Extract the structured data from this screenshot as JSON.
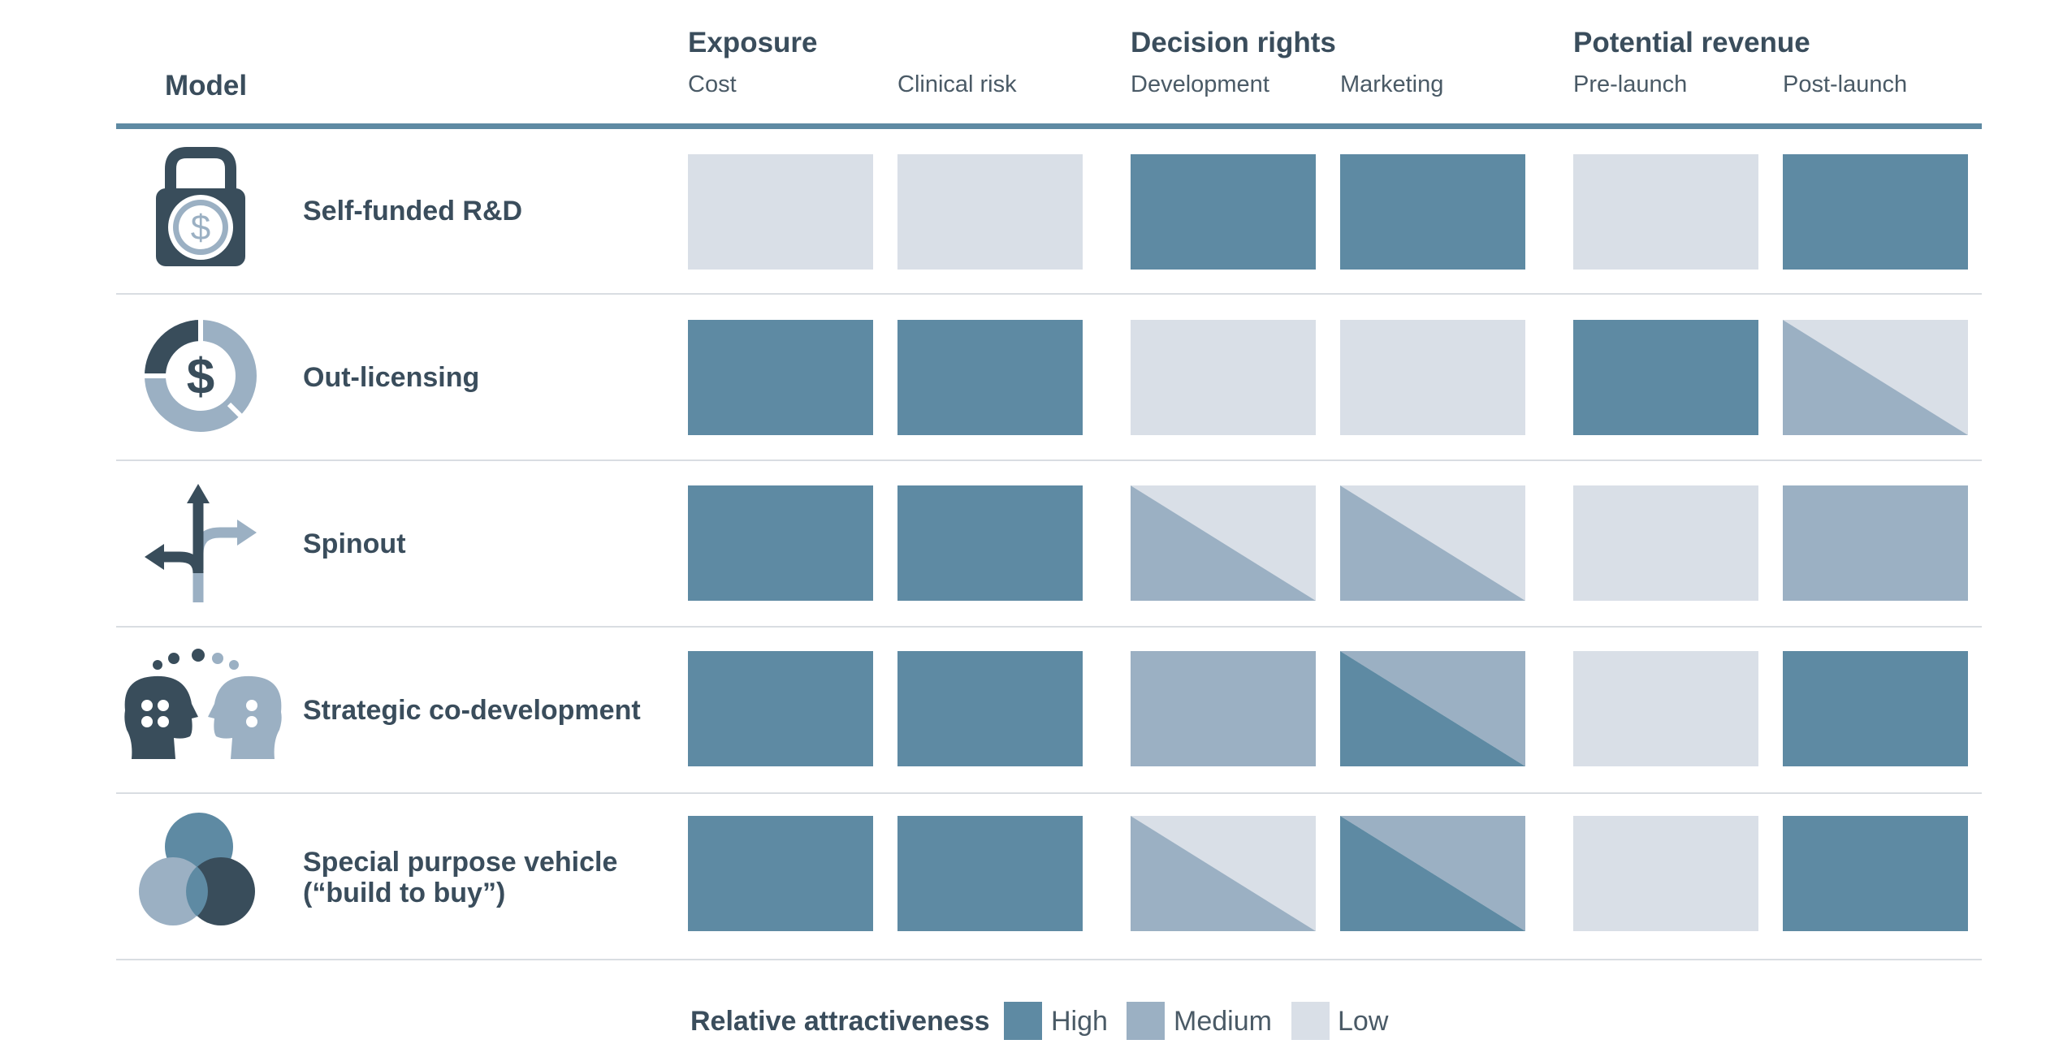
{
  "header": {
    "model_label": "Model",
    "groups": [
      {
        "label": "Exposure",
        "columns": [
          "Cost",
          "Clinical risk"
        ]
      },
      {
        "label": "Decision rights",
        "columns": [
          "Development",
          "Marketing"
        ]
      },
      {
        "label": "Potential revenue",
        "columns": [
          "Pre-launch",
          "Post-launch"
        ]
      }
    ]
  },
  "colors": {
    "high": "#5e8aa3",
    "medium": "#9bb0c3",
    "low": "#d9dfe7",
    "text": "#3a4d5c",
    "dark_icon": "#394d5b"
  },
  "rows": [
    {
      "label": "Self-funded R&D",
      "icon": "lock-dollar-icon",
      "cells": [
        "low",
        "low",
        "high",
        "high",
        "low",
        "high"
      ]
    },
    {
      "label": "Out-licensing",
      "icon": "dollar-donut-icon",
      "cells": [
        "high",
        "high",
        "low",
        "low",
        "high",
        "medium/low"
      ]
    },
    {
      "label": "Spinout",
      "icon": "split-arrows-icon",
      "cells": [
        "high",
        "high",
        "medium/low",
        "medium/low",
        "low",
        "medium"
      ]
    },
    {
      "label": "Strategic co-development",
      "icon": "two-heads-icon",
      "cells": [
        "high",
        "high",
        "medium",
        "high/medium",
        "low",
        "high"
      ]
    },
    {
      "label": "Special purpose vehicle\n(“build to buy”)",
      "icon": "venn-circles-icon",
      "cells": [
        "high",
        "high",
        "medium/low",
        "high/medium",
        "low",
        "high"
      ]
    }
  ],
  "legend": {
    "title": "Relative attractiveness",
    "items": [
      {
        "key": "high",
        "label": "High"
      },
      {
        "key": "medium",
        "label": "Medium"
      },
      {
        "key": "low",
        "label": "Low"
      }
    ]
  }
}
